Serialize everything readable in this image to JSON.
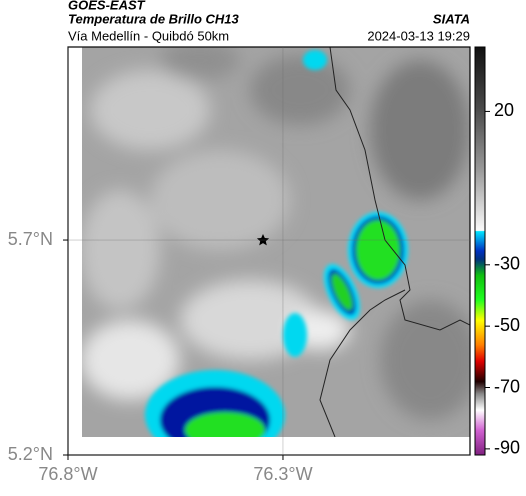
{
  "header": {
    "source": "GOES-EAST",
    "title": "Temperatura de Brillo CH13",
    "brand": "SIATA",
    "subtitle": "Vía Medellín - Quibdó 50km",
    "datetime": "2024-03-13 19:29"
  },
  "map": {
    "xlim": [
      -76.8,
      -75.865
    ],
    "ylim": [
      5.2,
      6.149
    ],
    "xticks": [
      {
        "value": -76.8,
        "label": "76.8°W"
      },
      {
        "value": -76.3,
        "label": "76.3°W"
      }
    ],
    "yticks": [
      {
        "value": 5.2,
        "label": "5.2°N"
      },
      {
        "value": 5.7,
        "label": "5.7°N"
      }
    ],
    "grid": true
  },
  "colorbar": {
    "lim": [
      -92,
      41
    ],
    "ticks": [
      20,
      -30,
      -50,
      -70,
      -90
    ]
  }
}
